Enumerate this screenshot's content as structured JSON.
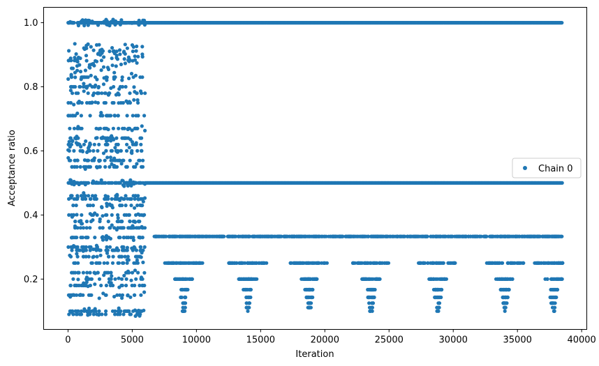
{
  "chart_data": {
    "type": "scatter",
    "xlabel": "Iteration",
    "ylabel": "Acceptance ratio",
    "xlim": [
      -1900,
      40400
    ],
    "ylim": [
      0.043,
      1.048
    ],
    "xticks": [
      0,
      5000,
      10000,
      15000,
      20000,
      25000,
      30000,
      35000,
      40000
    ],
    "xtick_labels": [
      "0",
      "5000",
      "10000",
      "15000",
      "20000",
      "25000",
      "30000",
      "35000",
      "40000"
    ],
    "yticks": [
      0.2,
      0.4,
      0.6,
      0.8,
      1.0
    ],
    "ytick_labels": [
      "0.2",
      "0.4",
      "0.6",
      "0.8",
      "1.0"
    ],
    "grid": false,
    "legend_position": "center-right",
    "series": [
      {
        "name": "Chain 0",
        "color": "#1f77b4",
        "marker": "dot",
        "x_range": [
          0,
          38500
        ],
        "description_levels_early": [
          1.0,
          0.91,
          0.9,
          0.86,
          0.83,
          0.8,
          0.78,
          0.75,
          0.71,
          0.67,
          0.64,
          0.62,
          0.6,
          0.57,
          0.55,
          0.5,
          0.46,
          0.45,
          0.43,
          0.4,
          0.38,
          0.36,
          0.33,
          0.3,
          0.29,
          0.27,
          0.25,
          0.22,
          0.2,
          0.18,
          0.15,
          0.1,
          0.09
        ],
        "levels_late": [
          1.0,
          0.5,
          0.333,
          0.25,
          0.2,
          0.167,
          0.143,
          0.125,
          0.111,
          0.1
        ],
        "transition_x": 6000
      }
    ]
  }
}
